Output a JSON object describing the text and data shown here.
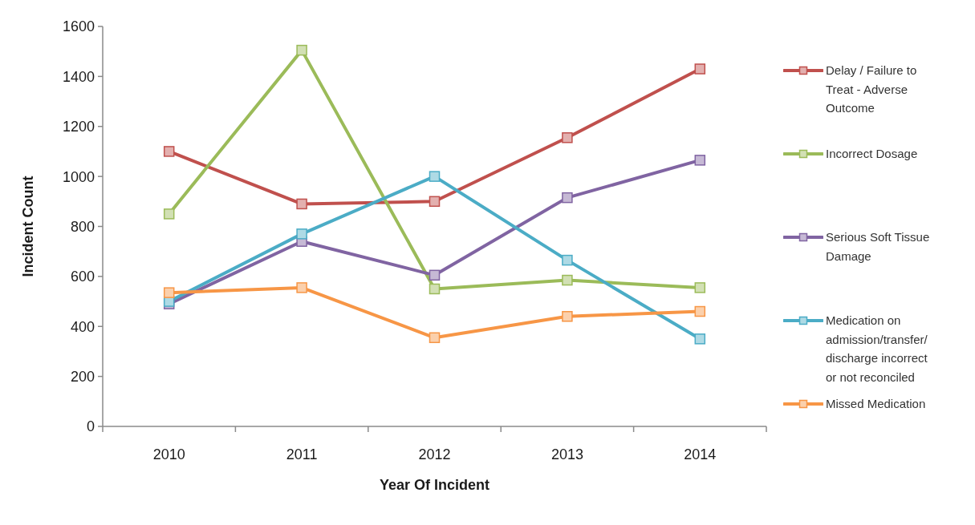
{
  "chart_data": {
    "type": "line",
    "xlabel": "Year Of Incident",
    "ylabel": "Incident Count",
    "categories": [
      "2010",
      "2011",
      "2012",
      "2013",
      "2014"
    ],
    "ylim": [
      0,
      1600
    ],
    "yticks": [
      0,
      200,
      400,
      600,
      800,
      1000,
      1200,
      1400,
      1600
    ],
    "grid": false,
    "legend": "right",
    "marker": "square",
    "line_style": "solid",
    "series": [
      {
        "name": "Delay / Failure to Treat - Adverse Outcome",
        "color": "#c0504d",
        "values": [
          1100,
          890,
          900,
          1155,
          1430
        ]
      },
      {
        "name": "Incorrect Dosage",
        "color": "#9bbb59",
        "values": [
          850,
          1505,
          550,
          585,
          555
        ]
      },
      {
        "name": "Serious Soft Tissue Damage",
        "color": "#8064a2",
        "values": [
          490,
          740,
          605,
          915,
          1065
        ]
      },
      {
        "name": "Medication on admission/transfer/discharge incorrect or not reconciled",
        "color": "#4bacc6",
        "values": [
          500,
          770,
          1000,
          665,
          350
        ]
      },
      {
        "name": "Missed Medication",
        "color": "#f79646",
        "values": [
          535,
          555,
          355,
          440,
          460
        ]
      }
    ]
  }
}
